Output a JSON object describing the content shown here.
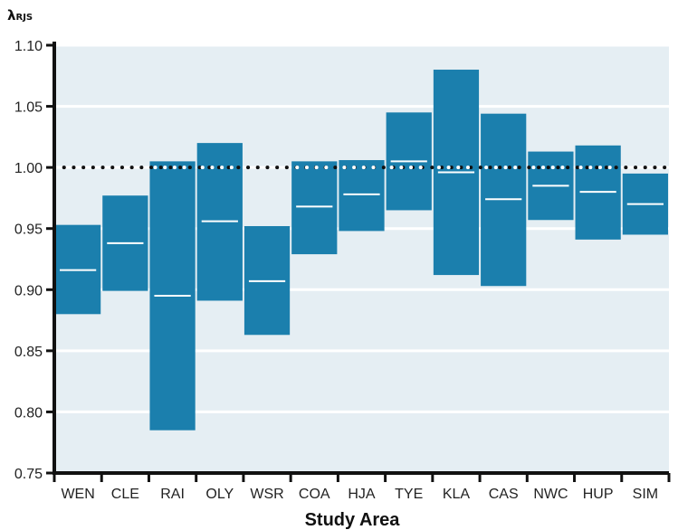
{
  "chart_data": {
    "type": "bar",
    "subtype": "floating-range",
    "xlabel": "Study Area",
    "ylabel": "λ",
    "ylabel_subscript": "RJS",
    "ylim": [
      0.75,
      1.1
    ],
    "yticks": [
      "0.75",
      "0.80",
      "0.85",
      "0.90",
      "0.95",
      "1.00",
      "1.05",
      "1.10"
    ],
    "ytick_values": [
      0.75,
      0.8,
      0.85,
      0.9,
      0.95,
      1.0,
      1.05,
      1.1
    ],
    "reference_line": 1.0,
    "grid": true,
    "categories": [
      "WEN",
      "CLE",
      "RAI",
      "OLY",
      "WSR",
      "COA",
      "HJA",
      "TYE",
      "KLA",
      "CAS",
      "NWC",
      "HUP",
      "SIM"
    ],
    "lower": [
      0.88,
      0.899,
      0.785,
      0.891,
      0.863,
      0.929,
      0.948,
      0.965,
      0.912,
      0.903,
      0.957,
      0.941,
      0.945
    ],
    "upper": [
      0.953,
      0.977,
      1.005,
      1.02,
      0.952,
      1.005,
      1.006,
      1.045,
      1.08,
      1.044,
      1.013,
      1.018,
      0.995
    ],
    "mean": [
      0.916,
      0.938,
      0.895,
      0.956,
      0.907,
      0.968,
      0.978,
      1.005,
      0.996,
      0.974,
      0.985,
      0.98,
      0.97
    ],
    "colors": {
      "bar": "#1b7fad",
      "panel": "#e5eef3",
      "grid": "#ffffff",
      "mean_line": "#ffffff",
      "reference": "#111111",
      "axis": "#111111"
    }
  }
}
